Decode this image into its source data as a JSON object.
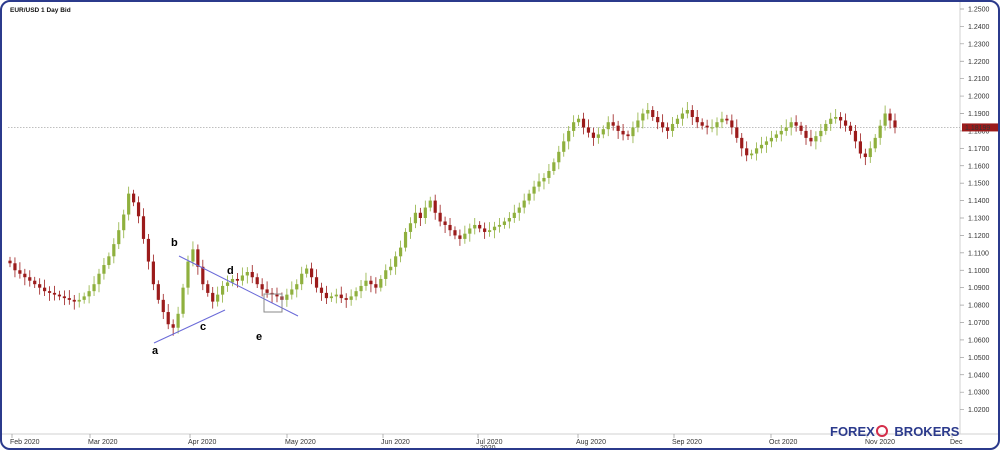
{
  "chart_data": {
    "type": "candlestick",
    "title": "EUR/USD  1 Day Bid",
    "ylim": [
      1.01,
      1.25
    ],
    "y_ticks": [
      "1.2500",
      "1.2400",
      "1.2300",
      "1.2200",
      "1.2100",
      "1.2000",
      "1.1900",
      "1.1800",
      "1.1700",
      "1.1600",
      "1.1500",
      "1.1400",
      "1.1300",
      "1.1200",
      "1.1100",
      "1.1000",
      "1.0900",
      "1.0800",
      "1.0700",
      "1.0600",
      "1.0500",
      "1.0400",
      "1.0300",
      "1.0200"
    ],
    "x_ticks": [
      "Feb 2020",
      "Mar 2020",
      "Apr 2020",
      "May 2020",
      "Jun 2020",
      "Jul 2020",
      "Aug 2020",
      "Sep 2020",
      "Oct 2020",
      "Nov 2020",
      "Dec"
    ],
    "x_sub_label": "2020",
    "last_price": "1.18199",
    "last_price_value": 1.182,
    "colors": {
      "up": "#8fb03e",
      "down": "#9b1b1b",
      "trendline": "#6a6ad8"
    },
    "annotations": [
      "a",
      "b",
      "c",
      "d",
      "e"
    ],
    "daily_closes": [
      1.104,
      1.1,
      1.098,
      1.096,
      1.094,
      1.092,
      1.09,
      1.088,
      1.087,
      1.086,
      1.085,
      1.084,
      1.083,
      1.082,
      1.083,
      1.085,
      1.088,
      1.092,
      1.098,
      1.103,
      1.108,
      1.115,
      1.123,
      1.132,
      1.144,
      1.139,
      1.131,
      1.118,
      1.105,
      1.092,
      1.083,
      1.076,
      1.069,
      1.067,
      1.075,
      1.09,
      1.105,
      1.112,
      1.102,
      1.092,
      1.087,
      1.082,
      1.086,
      1.091,
      1.093,
      1.095,
      1.094,
      1.097,
      1.099,
      1.096,
      1.092,
      1.089,
      1.087,
      1.086,
      1.085,
      1.083,
      1.086,
      1.089,
      1.092,
      1.098,
      1.101,
      1.096,
      1.09,
      1.087,
      1.084,
      1.085,
      1.086,
      1.084,
      1.083,
      1.085,
      1.088,
      1.091,
      1.094,
      1.092,
      1.09,
      1.095,
      1.1,
      1.102,
      1.108,
      1.113,
      1.122,
      1.127,
      1.133,
      1.13,
      1.136,
      1.14,
      1.133,
      1.128,
      1.126,
      1.123,
      1.12,
      1.118,
      1.121,
      1.124,
      1.126,
      1.124,
      1.122,
      1.123,
      1.125,
      1.126,
      1.128,
      1.13,
      1.133,
      1.136,
      1.14,
      1.144,
      1.148,
      1.151,
      1.153,
      1.157,
      1.162,
      1.168,
      1.174,
      1.18,
      1.185,
      1.187,
      1.182,
      1.179,
      1.176,
      1.178,
      1.181,
      1.185,
      1.183,
      1.18,
      1.178,
      1.177,
      1.182,
      1.186,
      1.19,
      1.192,
      1.188,
      1.185,
      1.182,
      1.18,
      1.184,
      1.187,
      1.19,
      1.192,
      1.188,
      1.185,
      1.183,
      1.182,
      1.182,
      1.185,
      1.187,
      1.186,
      1.182,
      1.176,
      1.17,
      1.166,
      1.167,
      1.17,
      1.172,
      1.174,
      1.176,
      1.178,
      1.18,
      1.182,
      1.185,
      1.183,
      1.18,
      1.176,
      1.174,
      1.177,
      1.18,
      1.184,
      1.187,
      1.188,
      1.186,
      1.183,
      1.18,
      1.174,
      1.167,
      1.165,
      1.17,
      1.176,
      1.183,
      1.19,
      1.186,
      1.182
    ]
  },
  "brand": {
    "part1": "FOREX",
    "part2": "BROKERS"
  }
}
